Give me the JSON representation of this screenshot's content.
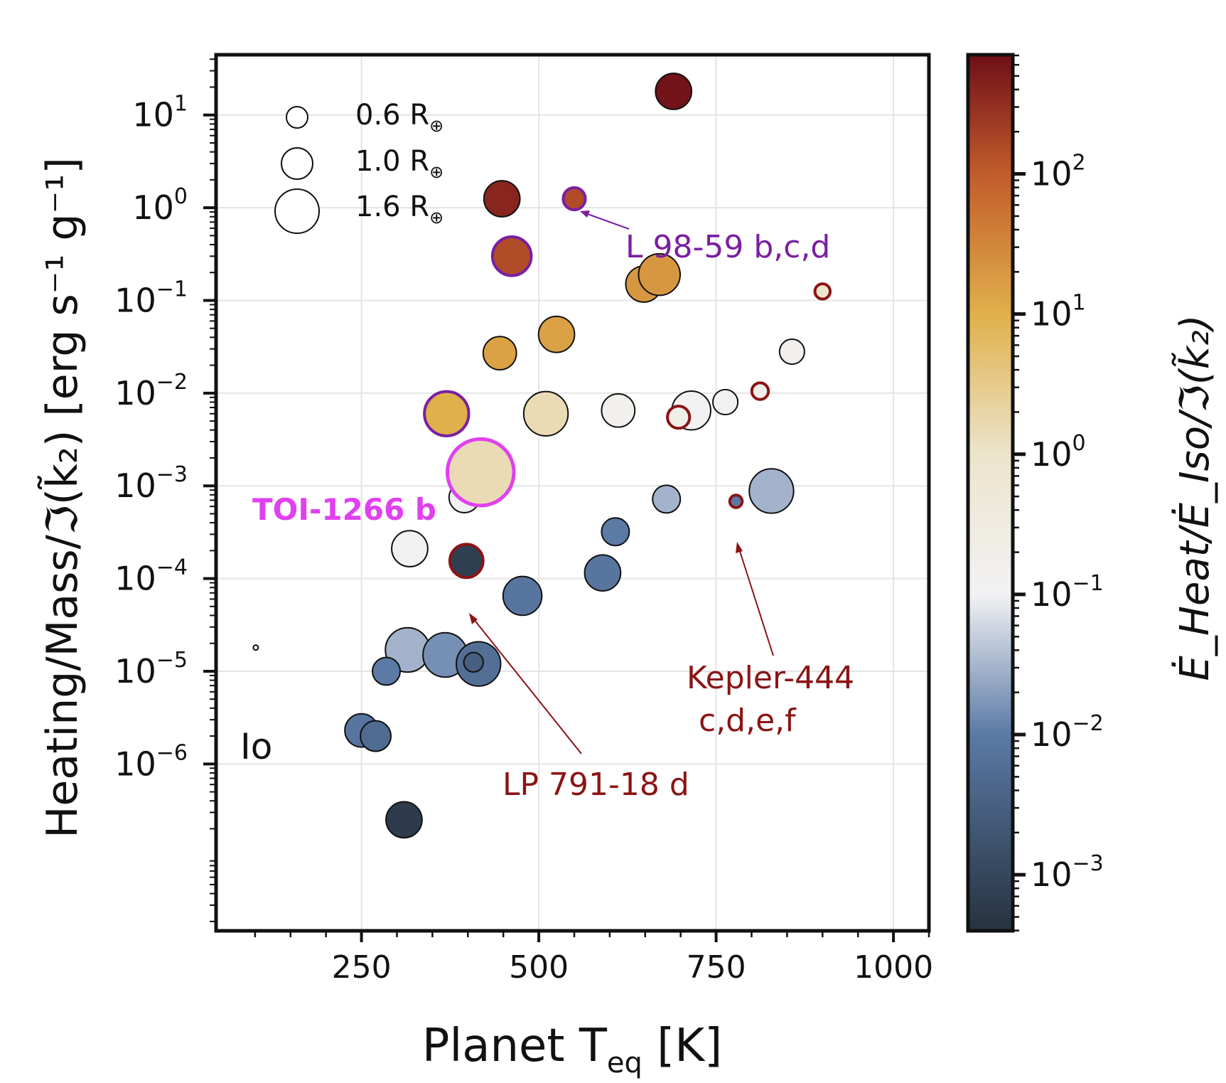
{
  "chart_data": {
    "type": "scatter",
    "title": "",
    "xlabel": {
      "main": "Planet T",
      "sub": "eq",
      "tail": " [K]"
    },
    "ylabel": "Heating/Mass/ℑ(k̃₂) [erg s⁻¹ g⁻¹]",
    "colorbar_label": "Ė_Heat/Ė_Iso/ℑ(k̃₂)",
    "xlim": [
      45,
      1050
    ],
    "ylim_log10": [
      -7.8,
      1.65
    ],
    "xscale": "linear",
    "yscale": "log",
    "grid": true,
    "x_ticks": [
      {
        "value": 250,
        "label": "250"
      },
      {
        "value": 500,
        "label": "500"
      },
      {
        "value": 750,
        "label": "750"
      },
      {
        "value": 1000,
        "label": "1000"
      }
    ],
    "y_ticks": [
      {
        "exp": 1,
        "base": "10",
        "sup": "1"
      },
      {
        "exp": 0,
        "base": "10",
        "sup": "0"
      },
      {
        "exp": -1,
        "base": "10",
        "sup": "−1"
      },
      {
        "exp": -2,
        "base": "10",
        "sup": "−2"
      },
      {
        "exp": -3,
        "base": "10",
        "sup": "−3"
      },
      {
        "exp": -4,
        "base": "10",
        "sup": "−4"
      },
      {
        "exp": -5,
        "base": "10",
        "sup": "−5"
      },
      {
        "exp": -6,
        "base": "10",
        "sup": "−6"
      }
    ],
    "colorbar": {
      "scale": "log",
      "range_log10": [
        -3.4,
        2.85
      ],
      "ticks": [
        {
          "exp": 2,
          "base": "10",
          "sup": "2"
        },
        {
          "exp": 1,
          "base": "10",
          "sup": "1"
        },
        {
          "exp": 0,
          "base": "10",
          "sup": "0"
        },
        {
          "exp": -1,
          "base": "10",
          "sup": "−1"
        },
        {
          "exp": -2,
          "base": "10",
          "sup": "−2"
        },
        {
          "exp": -3,
          "base": "10",
          "sup": "−3"
        }
      ],
      "stops": [
        {
          "log": -3.4,
          "color": "#26323f"
        },
        {
          "log": -2.0,
          "color": "#5b7aa6"
        },
        {
          "log": -1.0,
          "color": "#f2f2f4"
        },
        {
          "log": 0.0,
          "color": "#ece4cc"
        },
        {
          "log": 1.0,
          "color": "#e0b04a"
        },
        {
          "log": 2.0,
          "color": "#c25c2c"
        },
        {
          "log": 2.85,
          "color": "#6e0f18"
        }
      ]
    },
    "size_legend": [
      {
        "radius_earth": 0.6,
        "label_value": "0.6 R",
        "label_sub": "⊕"
      },
      {
        "radius_earth": 1.0,
        "label_value": "1.0 R",
        "label_sub": "⊕"
      },
      {
        "radius_earth": 1.6,
        "label_value": "1.6 R",
        "label_sub": "⊕"
      }
    ],
    "points": [
      {
        "x": 690,
        "y": 18,
        "radius": 1.3,
        "c": 650,
        "edge": "#111111"
      },
      {
        "x": 448,
        "y": 1.25,
        "radius": 1.3,
        "c": 400,
        "edge": "#111111"
      },
      {
        "x": 550,
        "y": 1.25,
        "radius": 0.8,
        "c": 150,
        "edge": "#7a1fa2"
      },
      {
        "x": 462,
        "y": 0.3,
        "radius": 1.4,
        "c": 150,
        "edge": "#7a1fa2"
      },
      {
        "x": 648,
        "y": 0.15,
        "radius": 1.3,
        "c": 20,
        "edge": "#111111"
      },
      {
        "x": 670,
        "y": 0.19,
        "radius": 1.5,
        "c": 20,
        "edge": "#111111"
      },
      {
        "x": 900,
        "y": 0.125,
        "radius": 0.55,
        "c": 1.0,
        "edge": "#8b1414"
      },
      {
        "x": 525,
        "y": 0.043,
        "radius": 1.3,
        "c": 15,
        "edge": "#111111"
      },
      {
        "x": 445,
        "y": 0.027,
        "radius": 1.2,
        "c": 15,
        "edge": "#111111"
      },
      {
        "x": 857,
        "y": 0.028,
        "radius": 0.9,
        "c": 0.15,
        "edge": "#111111"
      },
      {
        "x": 370,
        "y": 0.006,
        "radius": 1.6,
        "c": 10,
        "edge": "#7a1fa2"
      },
      {
        "x": 510,
        "y": 0.006,
        "radius": 1.6,
        "c": 1.5,
        "edge": "#111111"
      },
      {
        "x": 612,
        "y": 0.0065,
        "radius": 1.2,
        "c": 0.15,
        "edge": "#111111"
      },
      {
        "x": 715,
        "y": 0.0065,
        "radius": 1.4,
        "c": 0.12,
        "edge": "#111111"
      },
      {
        "x": 763,
        "y": 0.008,
        "radius": 0.9,
        "c": 0.12,
        "edge": "#111111"
      },
      {
        "x": 812,
        "y": 0.0105,
        "radius": 0.6,
        "c": 0.2,
        "edge": "#8b1414"
      },
      {
        "x": 697,
        "y": 0.0055,
        "radius": 0.8,
        "c": 0.2,
        "edge": "#8b1414"
      },
      {
        "x": 395,
        "y": 0.00075,
        "radius": 1.1,
        "c": 0.12,
        "edge": "#111111"
      },
      {
        "x": 680,
        "y": 0.00072,
        "radius": 1.0,
        "c": 0.03,
        "edge": "#111111"
      },
      {
        "x": 828,
        "y": 0.00088,
        "radius": 1.6,
        "c": 0.03,
        "edge": "#111111"
      },
      {
        "x": 778,
        "y": 0.00068,
        "radius": 0.45,
        "c": 0.01,
        "edge": "#8b1414"
      },
      {
        "x": 318,
        "y": 0.00021,
        "radius": 1.3,
        "c": 0.12,
        "edge": "#111111"
      },
      {
        "x": 608,
        "y": 0.00032,
        "radius": 1.0,
        "c": 0.01,
        "edge": "#111111"
      },
      {
        "x": 398,
        "y": 0.000155,
        "radius": 1.2,
        "c": 0.0007,
        "edge": "#8b1414"
      },
      {
        "x": 590,
        "y": 0.000115,
        "radius": 1.3,
        "c": 0.008,
        "edge": "#111111"
      },
      {
        "x": 477,
        "y": 6.5e-05,
        "radius": 1.4,
        "c": 0.008,
        "edge": "#111111"
      },
      {
        "x": 315,
        "y": 1.7e-05,
        "radius": 1.6,
        "c": 0.03,
        "edge": "#111111"
      },
      {
        "x": 368,
        "y": 1.5e-05,
        "radius": 1.6,
        "c": 0.015,
        "edge": "#111111"
      },
      {
        "x": 415,
        "y": 1.2e-05,
        "radius": 1.6,
        "c": 0.006,
        "edge": "#111111"
      },
      {
        "x": 408,
        "y": 1.25e-05,
        "radius": 0.7,
        "c": 0.003,
        "edge": "#111111"
      },
      {
        "x": 285,
        "y": 1e-05,
        "radius": 1.0,
        "c": 0.01,
        "edge": "#111111"
      },
      {
        "x": 250,
        "y": 2.3e-06,
        "radius": 1.2,
        "c": 0.008,
        "edge": "#111111"
      },
      {
        "x": 270,
        "y": 2e-06,
        "radius": 1.1,
        "c": 0.005,
        "edge": "#111111"
      },
      {
        "x": 310,
        "y": 2.5e-07,
        "radius": 1.3,
        "c": 0.0006,
        "edge": "#111111"
      },
      {
        "x": 418,
        "y": 0.0014,
        "radius": 2.4,
        "c": 1.5,
        "edge": "#e040f0"
      },
      {
        "x": 101,
        "y": 1.8e-05,
        "radius": 0.18,
        "c": 0.2,
        "edge": "#111111"
      }
    ],
    "annotations": [
      {
        "text": "L 98-59 b,c,d",
        "color": "#7a1fa2",
        "arrow": true
      },
      {
        "text": "TOI-1266 b",
        "color": "#e040f0",
        "arrow": false
      },
      {
        "text": "Kepler-444",
        "color": "#8b1414",
        "arrow": true
      },
      {
        "text": "c,d,e,f",
        "color": "#8b1414",
        "arrow": false
      },
      {
        "text": "LP 791-18 d",
        "color": "#8b1414",
        "arrow": true
      },
      {
        "text": "Io",
        "color": "#111111",
        "arrow": false
      }
    ]
  }
}
